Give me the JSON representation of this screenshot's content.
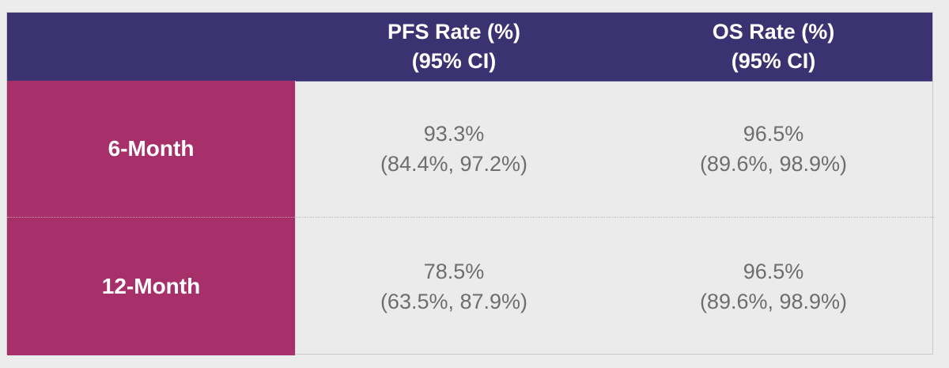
{
  "table": {
    "header": {
      "corner": "",
      "columns": [
        {
          "line1": "PFS Rate (%)",
          "line2": "(95% CI)"
        },
        {
          "line1": "OS Rate (%)",
          "line2": "(95% CI)"
        }
      ]
    },
    "rows": [
      {
        "label": "6-Month",
        "cells": [
          {
            "rate": "93.3%",
            "ci": "(84.4%, 97.2%)"
          },
          {
            "rate": "96.5%",
            "ci": "(89.6%, 98.9%)"
          }
        ]
      },
      {
        "label": "12-Month",
        "cells": [
          {
            "rate": "78.5%",
            "ci": "(63.5%, 87.9%)"
          },
          {
            "rate": "96.5%",
            "ci": "(89.6%, 98.9%)"
          }
        ]
      }
    ]
  },
  "colors": {
    "header_bg": "#3b3272",
    "row_label_bg": "#a8306a",
    "cell_bg": "#ebebeb",
    "cell_text": "#6e6e6e",
    "header_text": "#ffffff"
  }
}
